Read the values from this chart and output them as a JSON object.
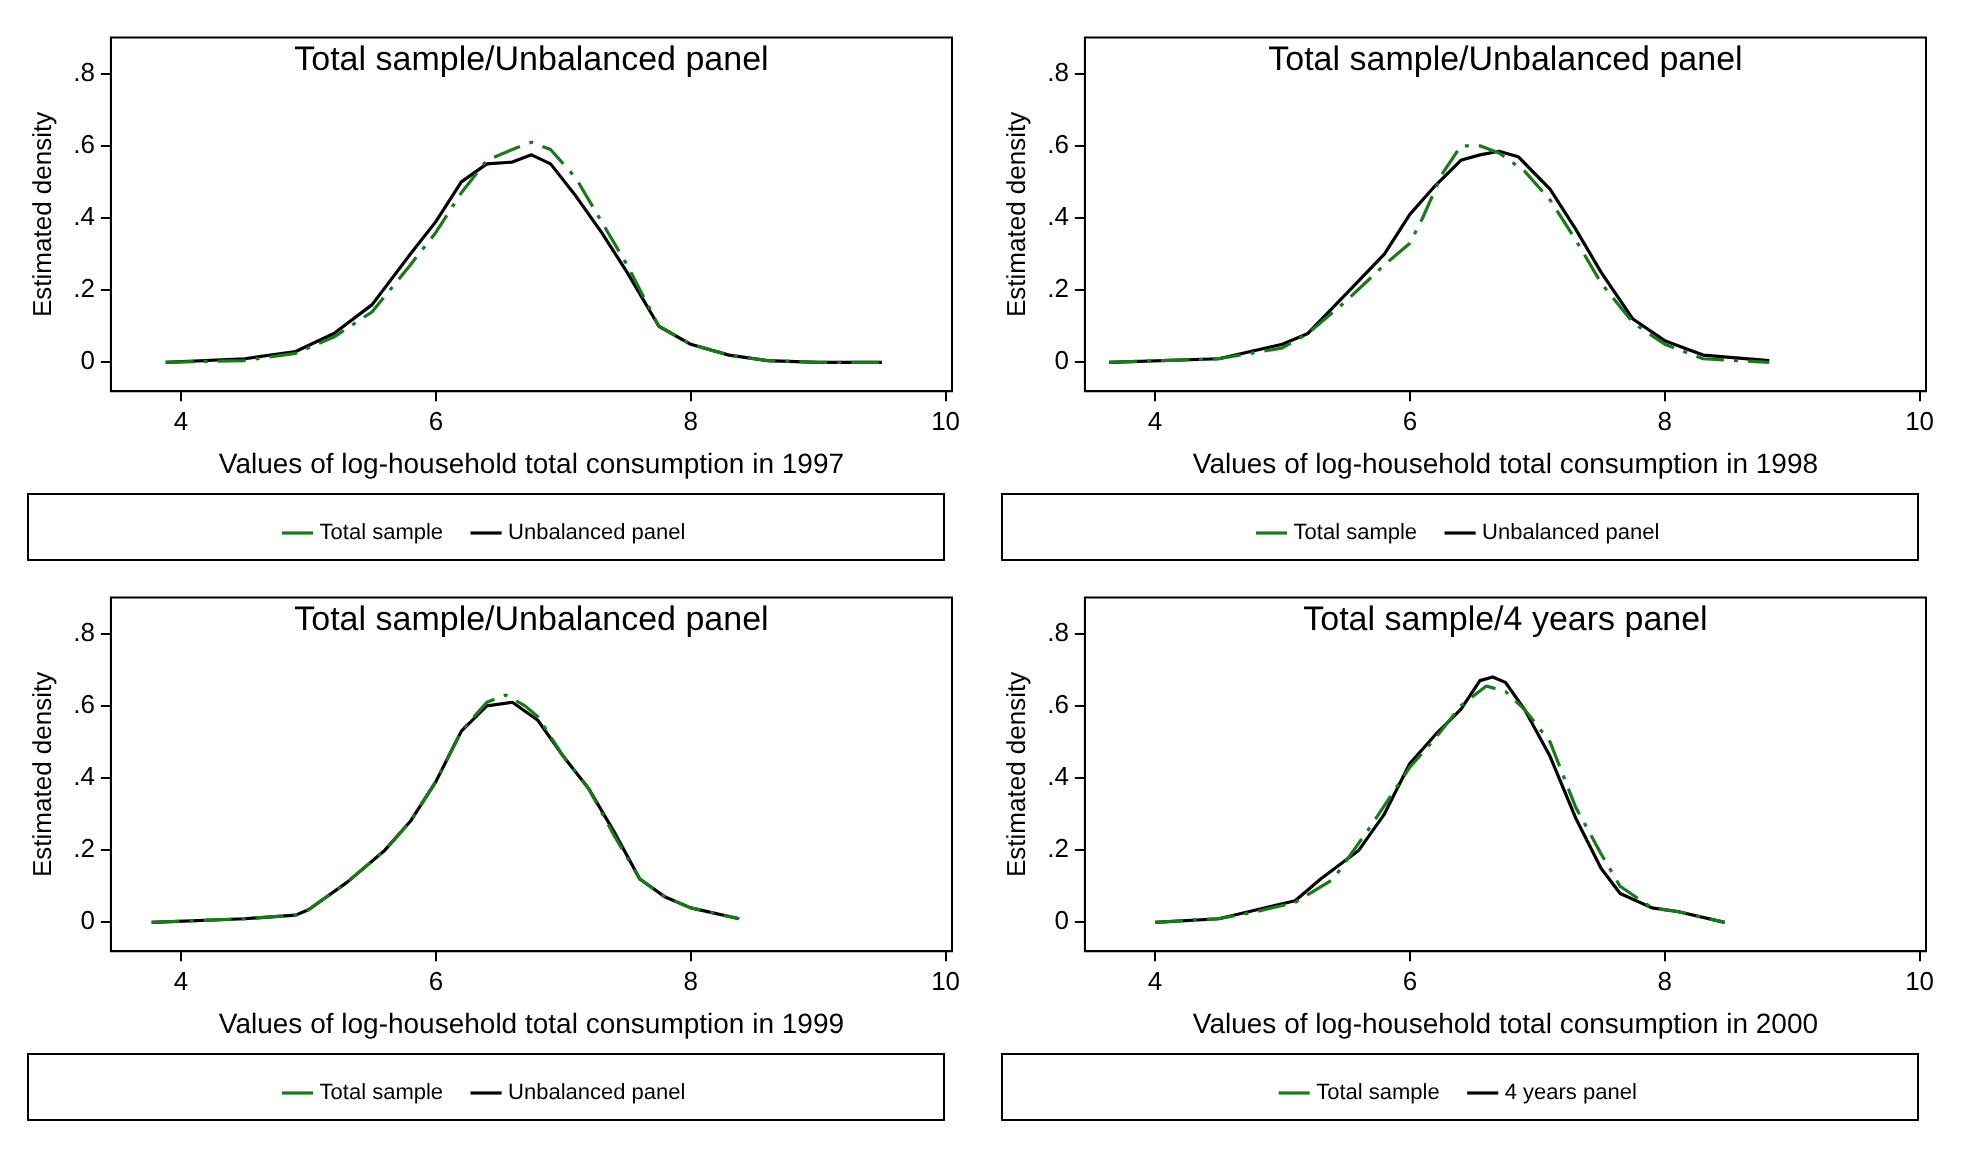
{
  "chart_data": [
    {
      "type": "line",
      "title": "Total sample/Unbalanced panel",
      "xlabel": "Values of log-household total consumption in 1997",
      "ylabel": "Estimated density",
      "xlim": [
        3.45,
        10.05
      ],
      "xticks": [
        4,
        6,
        8,
        10
      ],
      "ylim": [
        -0.08,
        0.9
      ],
      "yticks": [
        {
          "value": 0,
          "label": "0"
        },
        {
          "value": 0.2,
          "label": ".2"
        },
        {
          "value": 0.4,
          "label": ".4"
        },
        {
          "value": 0.6,
          "label": ".6"
        },
        {
          "value": 0.8,
          "label": ".8"
        }
      ],
      "grid": false,
      "legend": "bottom",
      "marker": "none",
      "series": [
        {
          "name": "Total sample",
          "color": "#1a7a1a",
          "line_style": "dashed",
          "x": [
            3.88,
            4.5,
            4.9,
            5.2,
            5.5,
            5.8,
            6.0,
            6.2,
            6.4,
            6.6,
            6.75,
            6.9,
            7.1,
            7.3,
            7.5,
            7.75,
            8.0,
            8.3,
            8.6,
            9.0,
            9.5
          ],
          "values": [
            0,
            0.005,
            0.025,
            0.07,
            0.14,
            0.27,
            0.36,
            0.47,
            0.56,
            0.59,
            0.61,
            0.59,
            0.51,
            0.39,
            0.27,
            0.1,
            0.05,
            0.02,
            0.005,
            0,
            0
          ]
        },
        {
          "name": "Unbalanced panel",
          "color": "#000000",
          "line_style": "solid",
          "x": [
            3.88,
            4.5,
            4.9,
            5.2,
            5.5,
            5.8,
            6.0,
            6.2,
            6.4,
            6.6,
            6.75,
            6.9,
            7.1,
            7.3,
            7.5,
            7.75,
            8.0,
            8.3,
            8.6,
            9.0,
            9.5
          ],
          "values": [
            0,
            0.01,
            0.03,
            0.08,
            0.16,
            0.3,
            0.39,
            0.5,
            0.55,
            0.555,
            0.575,
            0.55,
            0.46,
            0.36,
            0.25,
            0.1,
            0.05,
            0.02,
            0.005,
            0,
            0
          ]
        }
      ]
    },
    {
      "type": "line",
      "title": "Total sample/Unbalanced panel",
      "xlabel": "Values of log-household total consumption in 1998",
      "ylabel": "Estimated density",
      "xlim": [
        3.45,
        10.05
      ],
      "xticks": [
        4,
        6,
        8,
        10
      ],
      "ylim": [
        -0.08,
        0.9
      ],
      "yticks": [
        {
          "value": 0,
          "label": "0"
        },
        {
          "value": 0.2,
          "label": ".2"
        },
        {
          "value": 0.4,
          "label": ".4"
        },
        {
          "value": 0.6,
          "label": ".6"
        },
        {
          "value": 0.8,
          "label": ".8"
        }
      ],
      "grid": false,
      "legend": "bottom",
      "marker": "none",
      "series": [
        {
          "name": "Total sample",
          "color": "#1a7a1a",
          "line_style": "dashed",
          "x": [
            3.64,
            4.5,
            5.0,
            5.2,
            5.5,
            5.8,
            6.0,
            6.1,
            6.25,
            6.4,
            6.55,
            6.7,
            6.9,
            7.1,
            7.3,
            7.5,
            7.75,
            8.0,
            8.3,
            8.82
          ],
          "values": [
            0,
            0.01,
            0.04,
            0.08,
            0.17,
            0.27,
            0.33,
            0.4,
            0.52,
            0.6,
            0.6,
            0.58,
            0.53,
            0.45,
            0.34,
            0.22,
            0.11,
            0.05,
            0.01,
            0
          ]
        },
        {
          "name": "Unbalanced panel",
          "color": "#000000",
          "line_style": "solid",
          "x": [
            3.64,
            4.5,
            5.0,
            5.2,
            5.5,
            5.8,
            6.0,
            6.2,
            6.4,
            6.55,
            6.7,
            6.85,
            7.1,
            7.3,
            7.5,
            7.75,
            8.0,
            8.3,
            8.82
          ],
          "values": [
            0,
            0.01,
            0.05,
            0.08,
            0.19,
            0.3,
            0.41,
            0.49,
            0.56,
            0.575,
            0.585,
            0.57,
            0.48,
            0.37,
            0.25,
            0.12,
            0.06,
            0.02,
            0.005
          ]
        }
      ]
    },
    {
      "type": "line",
      "title": "Total sample/Unbalanced panel",
      "xlabel": "Values of log-household total consumption in 1999",
      "ylabel": "Estimated density",
      "xlim": [
        3.45,
        10.05
      ],
      "xticks": [
        4,
        6,
        8,
        10
      ],
      "ylim": [
        -0.08,
        0.9
      ],
      "yticks": [
        {
          "value": 0,
          "label": "0"
        },
        {
          "value": 0.2,
          "label": ".2"
        },
        {
          "value": 0.4,
          "label": ".4"
        },
        {
          "value": 0.6,
          "label": ".6"
        },
        {
          "value": 0.8,
          "label": ".8"
        }
      ],
      "grid": false,
      "legend": "bottom",
      "marker": "none",
      "series": [
        {
          "name": "Total sample",
          "color": "#1a7a1a",
          "line_style": "dashed",
          "x": [
            3.77,
            4.5,
            4.9,
            5.0,
            5.3,
            5.6,
            5.8,
            6.0,
            6.2,
            6.4,
            6.55,
            6.7,
            6.8,
            7.0,
            7.2,
            7.4,
            7.6,
            7.8,
            8.0,
            8.38
          ],
          "values": [
            0,
            0.01,
            0.02,
            0.035,
            0.11,
            0.2,
            0.28,
            0.39,
            0.53,
            0.61,
            0.63,
            0.6,
            0.57,
            0.46,
            0.37,
            0.24,
            0.12,
            0.07,
            0.04,
            0.01
          ]
        },
        {
          "name": "Unbalanced panel",
          "color": "#000000",
          "line_style": "solid",
          "x": [
            3.77,
            4.5,
            4.9,
            5.0,
            5.3,
            5.6,
            5.8,
            6.0,
            6.2,
            6.4,
            6.6,
            6.8,
            7.0,
            7.2,
            7.4,
            7.6,
            7.8,
            8.0,
            8.38
          ],
          "values": [
            0,
            0.01,
            0.02,
            0.035,
            0.11,
            0.2,
            0.28,
            0.39,
            0.53,
            0.6,
            0.61,
            0.56,
            0.46,
            0.37,
            0.25,
            0.12,
            0.07,
            0.04,
            0.01
          ]
        }
      ]
    },
    {
      "type": "line",
      "title": "Total sample/4 years panel",
      "xlabel": "Values of log-household total consumption in 2000",
      "ylabel": "Estimated density",
      "xlim": [
        3.45,
        10.05
      ],
      "xticks": [
        4,
        6,
        8,
        10
      ],
      "ylim": [
        -0.08,
        0.9
      ],
      "yticks": [
        {
          "value": 0,
          "label": "0"
        },
        {
          "value": 0.2,
          "label": ".2"
        },
        {
          "value": 0.4,
          "label": ".4"
        },
        {
          "value": 0.6,
          "label": ".6"
        },
        {
          "value": 0.8,
          "label": ".8"
        }
      ],
      "grid": false,
      "legend": "bottom",
      "marker": "none",
      "series": [
        {
          "name": "Total sample",
          "color": "#1a7a1a",
          "line_style": "dashed",
          "x": [
            4.0,
            4.5,
            4.8,
            5.1,
            5.4,
            5.7,
            6.0,
            6.2,
            6.4,
            6.6,
            6.75,
            6.9,
            7.1,
            7.3,
            7.5,
            7.65,
            7.9,
            8.1,
            8.47
          ],
          "values": [
            0,
            0.01,
            0.03,
            0.055,
            0.12,
            0.27,
            0.43,
            0.51,
            0.6,
            0.655,
            0.64,
            0.59,
            0.5,
            0.32,
            0.19,
            0.1,
            0.04,
            0.03,
            0
          ]
        },
        {
          "name": "4 years panel",
          "color": "#000000",
          "line_style": "solid",
          "x": [
            4.0,
            4.5,
            4.8,
            5.1,
            5.3,
            5.6,
            5.8,
            6.0,
            6.2,
            6.4,
            6.55,
            6.65,
            6.75,
            6.9,
            7.1,
            7.3,
            7.5,
            7.65,
            7.9,
            8.1,
            8.47
          ],
          "values": [
            0,
            0.01,
            0.035,
            0.06,
            0.12,
            0.2,
            0.3,
            0.44,
            0.52,
            0.59,
            0.67,
            0.68,
            0.665,
            0.59,
            0.46,
            0.29,
            0.15,
            0.08,
            0.04,
            0.03,
            0
          ]
        }
      ]
    }
  ]
}
